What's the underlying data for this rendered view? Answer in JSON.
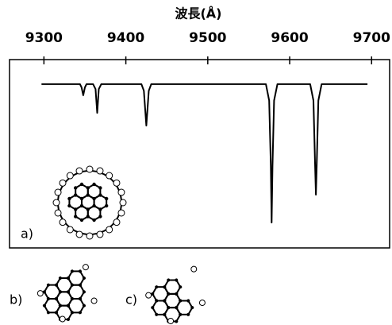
{
  "chart_data": {
    "type": "line",
    "x_label": "波長(Å)",
    "xlim": [
      9258,
      9722
    ],
    "xticks": [
      9300,
      9400,
      9500,
      9600,
      9700
    ],
    "ylim": [
      0,
      1.15
    ],
    "color": "#000000",
    "x": [
      9297,
      9344,
      9346,
      9348,
      9350,
      9352,
      9360,
      9363,
      9365,
      9367,
      9370,
      9419,
      9422,
      9425,
      9428,
      9431,
      9571,
      9575,
      9577,
      9578,
      9579,
      9581,
      9585,
      9625,
      9629,
      9631,
      9632,
      9633,
      9635,
      9639,
      9695
    ],
    "values": [
      1,
      1,
      0.98,
      0.932,
      0.98,
      1,
      1,
      0.97,
      0.825,
      0.97,
      1,
      1,
      0.96,
      0.747,
      0.96,
      1,
      1,
      0.9,
      0.5,
      0.155,
      0.5,
      0.9,
      1,
      1,
      0.9,
      0.5,
      0.325,
      0.5,
      0.9,
      1,
      1
    ],
    "annotations": [
      "a)",
      "b)",
      "c)"
    ]
  }
}
